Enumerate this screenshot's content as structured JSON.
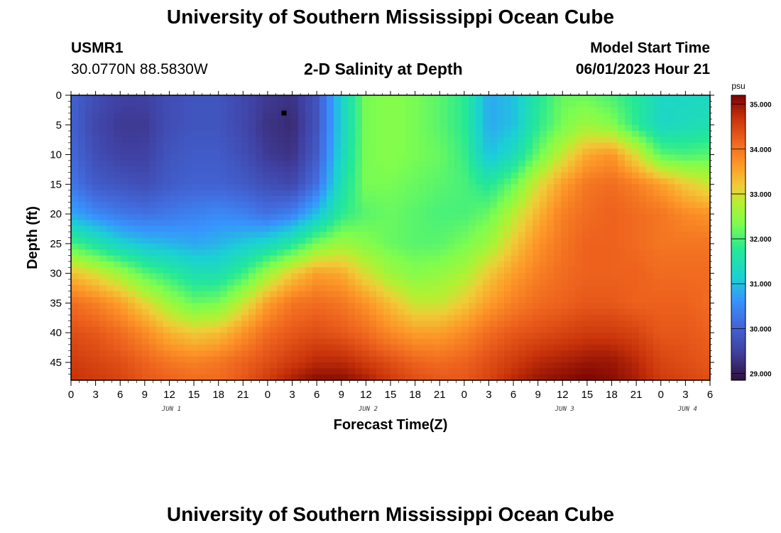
{
  "header": {
    "title": "University of Southern Mississippi Ocean Cube",
    "station": "USMR1",
    "coords": "30.0770N  88.5830W",
    "plot_title": "2-D Salinity at Depth",
    "model_label": "Model Start Time",
    "model_time": "06/01/2023 Hour 21"
  },
  "footer": {
    "title": "University of Southern Mississippi Ocean Cube"
  },
  "chart_data": {
    "type": "heatmap",
    "xlabel": "Forecast Time(Z)",
    "ylabel": "Depth (ft)",
    "x_tick_labels": [
      "0",
      "3",
      "6",
      "9",
      "12",
      "15",
      "18",
      "21",
      "0",
      "3",
      "6",
      "9",
      "12",
      "15",
      "18",
      "21",
      "0",
      "3",
      "6",
      "9",
      "12",
      "15",
      "18",
      "21",
      "0",
      "3",
      "6"
    ],
    "day_labels": [
      {
        "label": "JUN 1",
        "tick": 4
      },
      {
        "label": "JUN 2",
        "tick": 12
      },
      {
        "label": "JUN 3",
        "tick": 20
      },
      {
        "label": "JUN 4",
        "tick": 25
      }
    ],
    "y_ticks": [
      0,
      5,
      10,
      15,
      20,
      25,
      30,
      35,
      40,
      45
    ],
    "ylim": [
      0,
      48
    ],
    "x_range_hours": [
      0,
      78
    ],
    "colorbar": {
      "unit": "psu",
      "range": [
        28.85,
        35.2
      ],
      "ticks": [
        "29.000",
        "30.000",
        "31.000",
        "32.000",
        "33.000",
        "34.000",
        "35.000"
      ],
      "tick_values": [
        29,
        30,
        31,
        32,
        33,
        34,
        35
      ]
    },
    "depths": [
      0,
      5,
      10,
      15,
      20,
      25,
      30,
      35,
      40,
      45,
      48
    ],
    "times": [
      0,
      3,
      6,
      9,
      12,
      15,
      18,
      21,
      24,
      27,
      30,
      33,
      36,
      39,
      42,
      45,
      48,
      51,
      54,
      57,
      60,
      63,
      66,
      69,
      72,
      75,
      78
    ],
    "values": [
      [
        30.0,
        29.7,
        29.5,
        29.5,
        29.7,
        29.8,
        29.8,
        29.6,
        29.4,
        29.3,
        29.8,
        31.2,
        32.3,
        32.4,
        32.3,
        32.1,
        31.8,
        30.8,
        31.0,
        31.7,
        32.2,
        32.2,
        32.0,
        31.7,
        31.3,
        31.3,
        31.3
      ],
      [
        30.0,
        29.6,
        29.4,
        29.4,
        29.7,
        29.8,
        29.8,
        29.6,
        29.3,
        29.2,
        29.8,
        31.2,
        32.3,
        32.4,
        32.3,
        32.1,
        31.8,
        30.8,
        31.0,
        31.8,
        32.3,
        32.6,
        32.4,
        31.8,
        31.3,
        31.4,
        31.5
      ],
      [
        30.1,
        29.7,
        29.5,
        29.5,
        29.8,
        29.9,
        29.9,
        29.7,
        29.4,
        29.3,
        29.9,
        31.3,
        32.3,
        32.4,
        32.3,
        32.2,
        31.9,
        31.0,
        31.4,
        32.2,
        32.9,
        33.5,
        33.7,
        33.0,
        32.1,
        32.0,
        32.1
      ],
      [
        30.3,
        29.9,
        29.8,
        29.7,
        29.9,
        30.0,
        30.0,
        29.9,
        29.7,
        29.6,
        30.2,
        31.5,
        32.3,
        32.3,
        32.2,
        32.1,
        32.0,
        31.7,
        32.2,
        33.0,
        33.6,
        34.0,
        34.1,
        33.9,
        33.6,
        33.2,
        32.9
      ],
      [
        30.8,
        30.5,
        30.3,
        30.2,
        30.3,
        30.4,
        30.5,
        30.4,
        30.2,
        30.4,
        31.0,
        31.8,
        32.1,
        32.2,
        32.1,
        32.0,
        32.0,
        32.2,
        32.8,
        33.4,
        33.9,
        34.1,
        34.2,
        34.1,
        34.0,
        33.8,
        33.7
      ],
      [
        32.0,
        31.6,
        31.2,
        31.0,
        30.9,
        30.8,
        30.9,
        31.1,
        31.3,
        31.7,
        32.3,
        32.6,
        32.4,
        32.2,
        32.1,
        32.1,
        32.3,
        32.6,
        33.2,
        33.7,
        34.0,
        34.2,
        34.2,
        34.1,
        34.0,
        34.0,
        34.0
      ],
      [
        33.3,
        33.0,
        32.6,
        32.1,
        31.8,
        31.5,
        31.5,
        31.9,
        32.6,
        33.2,
        33.6,
        33.5,
        33.0,
        32.6,
        32.4,
        32.5,
        32.7,
        33.2,
        33.6,
        33.9,
        34.1,
        34.2,
        34.2,
        34.2,
        34.1,
        34.1,
        34.1
      ],
      [
        34.1,
        33.9,
        33.6,
        33.1,
        32.6,
        32.2,
        32.3,
        32.9,
        33.6,
        34.0,
        34.1,
        34.0,
        33.7,
        33.3,
        32.9,
        32.9,
        33.2,
        33.6,
        33.9,
        34.1,
        34.2,
        34.3,
        34.3,
        34.2,
        34.2,
        34.2,
        34.1
      ],
      [
        34.4,
        34.3,
        34.1,
        33.8,
        33.4,
        33.2,
        33.3,
        33.7,
        34.1,
        34.3,
        34.4,
        34.3,
        34.1,
        33.8,
        33.6,
        33.6,
        33.8,
        34.1,
        34.3,
        34.4,
        34.5,
        34.6,
        34.6,
        34.5,
        34.3,
        34.3,
        34.2
      ],
      [
        34.6,
        34.5,
        34.4,
        34.2,
        34.0,
        33.9,
        34.0,
        34.2,
        34.4,
        34.6,
        34.8,
        34.8,
        34.6,
        34.4,
        34.2,
        34.1,
        34.2,
        34.4,
        34.6,
        34.8,
        34.9,
        35.0,
        35.0,
        34.8,
        34.5,
        34.4,
        34.3
      ],
      [
        34.7,
        34.6,
        34.5,
        34.3,
        34.2,
        34.1,
        34.1,
        34.3,
        34.6,
        34.9,
        35.1,
        35.1,
        34.9,
        34.6,
        34.4,
        34.3,
        34.3,
        34.5,
        34.8,
        35.0,
        35.1,
        35.2,
        35.1,
        34.9,
        34.6,
        34.5,
        34.4
      ]
    ],
    "marker": {
      "time": 26,
      "depth": 3
    }
  }
}
